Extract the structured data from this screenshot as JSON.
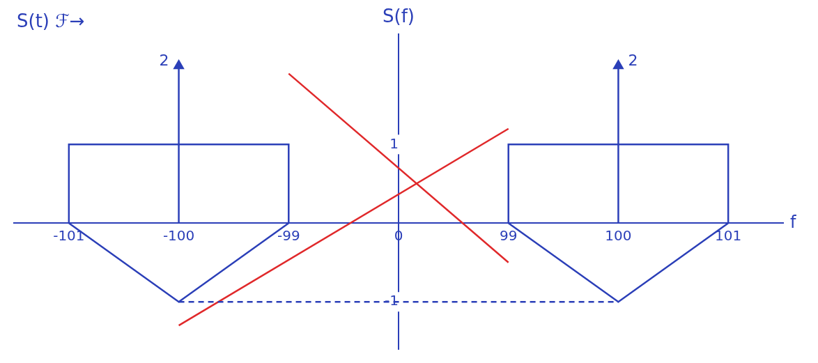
{
  "chart_data": {
    "type": "line",
    "title": "S(f)",
    "annotations": [
      "S(t) ℱ→"
    ],
    "x_label": "f",
    "categories": [
      "-101",
      "-100",
      "-99",
      "0",
      "99",
      "100",
      "101"
    ],
    "ylim": [
      -1.6,
      2.4
    ],
    "yticks": [
      -1,
      1
    ],
    "grid": false,
    "series": [
      {
        "color": "#2b3fb8",
        "line_style": "solid",
        "points": [
          [
            "-101",
            0
          ],
          [
            "-101",
            1
          ],
          [
            "-99",
            1
          ],
          [
            "-99",
            0
          ]
        ]
      },
      {
        "color": "#2b3fb8",
        "line_style": "solid",
        "points": [
          [
            "99",
            0
          ],
          [
            "99",
            1
          ],
          [
            "101",
            1
          ],
          [
            "101",
            0
          ]
        ]
      },
      {
        "color": "#2b3fb8",
        "line_style": "solid",
        "points": [
          [
            "-101",
            0
          ],
          [
            "-100",
            -1
          ],
          [
            "-99",
            0
          ]
        ]
      },
      {
        "color": "#2b3fb8",
        "line_style": "solid",
        "points": [
          [
            "99",
            0
          ],
          [
            "100",
            -1
          ],
          [
            "101",
            0
          ]
        ]
      },
      {
        "color": "#2b3fb8",
        "line_style": "dashed",
        "points": [
          [
            "-100",
            -1
          ],
          [
            "100",
            -1
          ]
        ]
      },
      {
        "color": "#e0282a",
        "line_style": "solid",
        "points": [
          [
            "-99",
            1.9
          ],
          [
            "99",
            -0.5
          ]
        ]
      },
      {
        "color": "#e0282a",
        "line_style": "solid",
        "points": [
          [
            "-100",
            -1.3
          ],
          [
            "99",
            1.2
          ]
        ]
      }
    ],
    "impulses": [
      {
        "x": "-100",
        "value": 2,
        "color": "#2b3fb8",
        "marker": "arrow"
      },
      {
        "x": "100",
        "value": 2,
        "color": "#2b3fb8",
        "marker": "arrow"
      }
    ]
  }
}
